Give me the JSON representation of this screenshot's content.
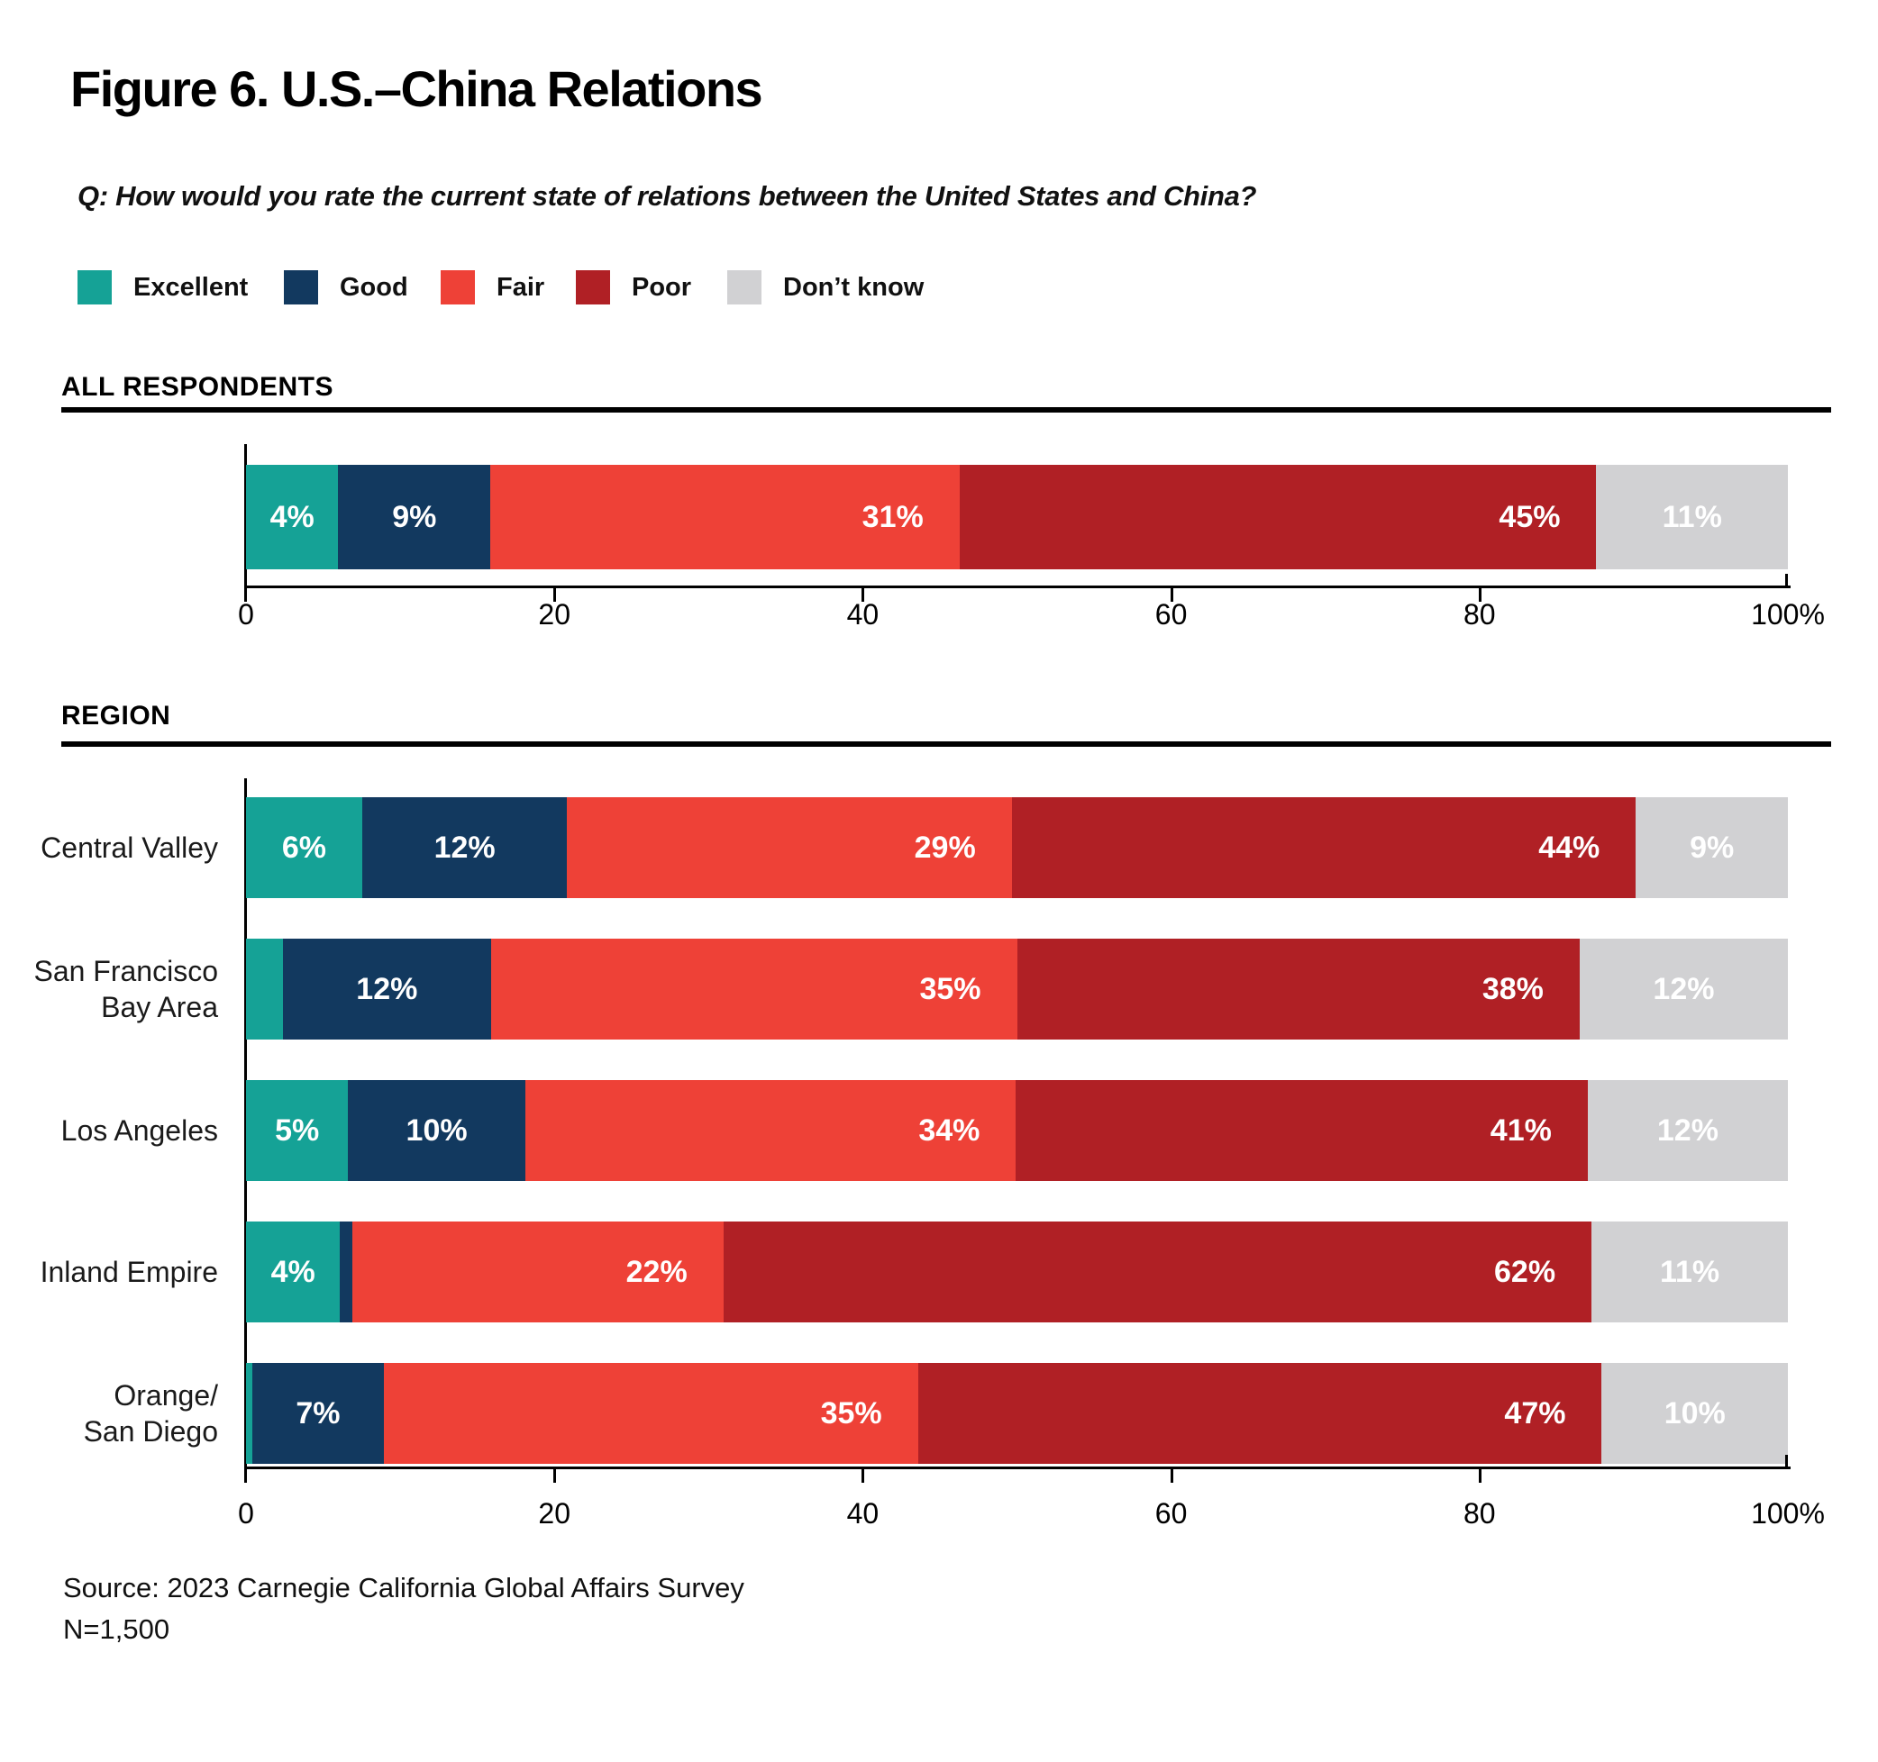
{
  "page": {
    "title": "Figure 6. U.S.–China Relations",
    "question": "Q: How would you rate the current state of relations between the United States and China?",
    "source": "Source: 2023 Carnegie California Global Affairs Survey",
    "sample": "N=1,500"
  },
  "colors": {
    "excellent": "#15A296",
    "good": "#12395F",
    "fair": "#EE4137",
    "poor": "#B02025",
    "dont_know": "#D1D1D3"
  },
  "legend": {
    "items": [
      {
        "label": "Excellent",
        "color_key": "excellent"
      },
      {
        "label": "Good",
        "color_key": "good"
      },
      {
        "label": "Fair",
        "color_key": "fair"
      },
      {
        "label": "Poor",
        "color_key": "poor"
      },
      {
        "label": "Don’t know",
        "color_key": "dont_know"
      }
    ]
  },
  "chart_data": [
    {
      "type": "bar",
      "orientation": "horizontal",
      "stacked": true,
      "section_title": "ALL RESPONDENTS",
      "categories": [
        ""
      ],
      "xlim": [
        0,
        100
      ],
      "grid": false,
      "x_ticks": [
        {
          "value": 0,
          "label": "0"
        },
        {
          "value": 20,
          "label": "20"
        },
        {
          "value": 40,
          "label": "40"
        },
        {
          "value": 60,
          "label": "60"
        },
        {
          "value": 80,
          "label": "80"
        },
        {
          "value": 100,
          "label": "100%"
        }
      ],
      "series": [
        {
          "name": "Excellent",
          "color_key": "excellent",
          "values": [
            4
          ],
          "labels": [
            "4%"
          ]
        },
        {
          "name": "Good",
          "color_key": "good",
          "values": [
            9
          ],
          "labels": [
            "9%"
          ]
        },
        {
          "name": "Fair",
          "color_key": "fair",
          "values": [
            31
          ],
          "labels": [
            "31%"
          ]
        },
        {
          "name": "Poor",
          "color_key": "poor",
          "values": [
            45
          ],
          "labels": [
            "45%"
          ]
        },
        {
          "name": "Don’t know",
          "color_key": "dont_know",
          "values": [
            11
          ],
          "labels": [
            "11%"
          ]
        }
      ]
    },
    {
      "type": "bar",
      "orientation": "horizontal",
      "stacked": true,
      "section_title": "REGION",
      "categories": [
        "Central Valley",
        "San Francisco\nBay Area",
        "Los Angeles",
        "Inland Empire",
        "Orange/\nSan Diego"
      ],
      "xlim": [
        0,
        100
      ],
      "grid": false,
      "x_ticks": [
        {
          "value": 0,
          "label": "0"
        },
        {
          "value": 20,
          "label": "20"
        },
        {
          "value": 40,
          "label": "40"
        },
        {
          "value": 60,
          "label": "60"
        },
        {
          "value": 80,
          "label": "80"
        },
        {
          "value": 100,
          "label": "100%"
        }
      ],
      "series": [
        {
          "name": "Excellent",
          "color_key": "excellent",
          "values": [
            6,
            3,
            5,
            4,
            0.5
          ],
          "labels": [
            "6%",
            "",
            "5%",
            "4%",
            ""
          ]
        },
        {
          "name": "Good",
          "color_key": "good",
          "values": [
            12,
            12,
            10,
            1,
            7
          ],
          "labels": [
            "12%",
            "12%",
            "10%",
            "",
            "7%"
          ]
        },
        {
          "name": "Fair",
          "color_key": "fair",
          "values": [
            29,
            35,
            34,
            22,
            35
          ],
          "labels": [
            "29%",
            "35%",
            "34%",
            "22%",
            "35%"
          ]
        },
        {
          "name": "Poor",
          "color_key": "poor",
          "values": [
            44,
            38,
            41,
            62,
            47
          ],
          "labels": [
            "44%",
            "38%",
            "41%",
            "62%",
            "47%"
          ]
        },
        {
          "name": "Don’t know",
          "color_key": "dont_know",
          "values": [
            9,
            12,
            12,
            11,
            10
          ],
          "labels": [
            "9%",
            "12%",
            "12%",
            "11%",
            "10%"
          ]
        }
      ]
    }
  ]
}
